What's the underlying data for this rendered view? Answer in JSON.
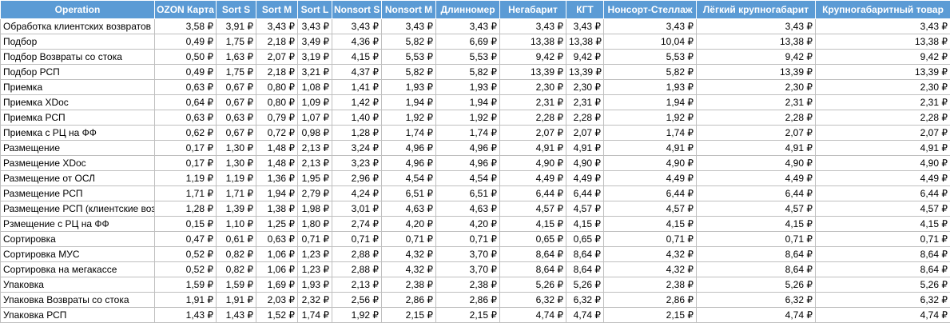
{
  "table": {
    "columns": [
      "Operation",
      "OZON Карта",
      "Sort S",
      "Sort M",
      "Sort L",
      "Nonsort S",
      "Nonsort M",
      "Длинномер",
      "Негабарит",
      "КГТ",
      "Нонсорт-Стеллаж",
      "Лёгкий крупногабарит",
      "Крупногабаритный товар"
    ],
    "rows": [
      [
        "Обработка клиентских возвратов",
        "3,58 ₽",
        "3,91 ₽",
        "3,43 ₽",
        "3,43 ₽",
        "3,43 ₽",
        "3,43 ₽",
        "3,43 ₽",
        "3,43 ₽",
        "3,43 ₽",
        "3,43 ₽",
        "3,43 ₽",
        "3,43 ₽"
      ],
      [
        "Подбор",
        "0,49 ₽",
        "1,75 ₽",
        "2,18 ₽",
        "3,49 ₽",
        "4,36 ₽",
        "5,82 ₽",
        "6,69 ₽",
        "13,38 ₽",
        "13,38 ₽",
        "10,04 ₽",
        "13,38 ₽",
        "13,38 ₽"
      ],
      [
        "Подбор Возвраты со стока",
        "0,50 ₽",
        "1,63 ₽",
        "2,07 ₽",
        "3,19 ₽",
        "4,15 ₽",
        "5,53 ₽",
        "5,53 ₽",
        "9,42 ₽",
        "9,42 ₽",
        "5,53 ₽",
        "9,42 ₽",
        "9,42 ₽"
      ],
      [
        "Подбор РСП",
        "0,49 ₽",
        "1,75 ₽",
        "2,18 ₽",
        "3,21 ₽",
        "4,37 ₽",
        "5,82 ₽",
        "5,82 ₽",
        "13,39 ₽",
        "13,39 ₽",
        "5,82 ₽",
        "13,39 ₽",
        "13,39 ₽"
      ],
      [
        "Приемка",
        "0,63 ₽",
        "0,67 ₽",
        "0,80 ₽",
        "1,08 ₽",
        "1,41 ₽",
        "1,93 ₽",
        "1,93 ₽",
        "2,30 ₽",
        "2,30 ₽",
        "1,93 ₽",
        "2,30 ₽",
        "2,30 ₽"
      ],
      [
        "Приемка XDoc",
        "0,64 ₽",
        "0,67 ₽",
        "0,80 ₽",
        "1,09 ₽",
        "1,42 ₽",
        "1,94 ₽",
        "1,94 ₽",
        "2,31 ₽",
        "2,31 ₽",
        "1,94 ₽",
        "2,31 ₽",
        "2,31 ₽"
      ],
      [
        "Приемка РСП",
        "0,63 ₽",
        "0,63 ₽",
        "0,79 ₽",
        "1,07 ₽",
        "1,40 ₽",
        "1,92 ₽",
        "1,92 ₽",
        "2,28 ₽",
        "2,28 ₽",
        "1,92 ₽",
        "2,28 ₽",
        "2,28 ₽"
      ],
      [
        "Приемка с РЦ на ФФ",
        "0,62 ₽",
        "0,67 ₽",
        "0,72 ₽",
        "0,98 ₽",
        "1,28 ₽",
        "1,74 ₽",
        "1,74 ₽",
        "2,07 ₽",
        "2,07 ₽",
        "1,74 ₽",
        "2,07 ₽",
        "2,07 ₽"
      ],
      [
        "Размещение",
        "0,17 ₽",
        "1,30 ₽",
        "1,48 ₽",
        "2,13 ₽",
        "3,24 ₽",
        "4,96 ₽",
        "4,96 ₽",
        "4,91 ₽",
        "4,91 ₽",
        "4,91 ₽",
        "4,91 ₽",
        "4,91 ₽"
      ],
      [
        "Размещение XDoc",
        "0,17 ₽",
        "1,30 ₽",
        "1,48 ₽",
        "2,13 ₽",
        "3,23 ₽",
        "4,96 ₽",
        "4,96 ₽",
        "4,90 ₽",
        "4,90 ₽",
        "4,90 ₽",
        "4,90 ₽",
        "4,90 ₽"
      ],
      [
        "Размещение от ОСЛ",
        "1,19 ₽",
        "1,19 ₽",
        "1,36 ₽",
        "1,95 ₽",
        "2,96 ₽",
        "4,54 ₽",
        "4,54 ₽",
        "4,49 ₽",
        "4,49 ₽",
        "4,49 ₽",
        "4,49 ₽",
        "4,49 ₽"
      ],
      [
        "Размещение РСП",
        "1,71 ₽",
        "1,71 ₽",
        "1,94 ₽",
        "2,79 ₽",
        "4,24 ₽",
        "6,51 ₽",
        "6,51 ₽",
        "6,44 ₽",
        "6,44 ₽",
        "6,44 ₽",
        "6,44 ₽",
        "6,44 ₽"
      ],
      [
        "Размещение РСП (клиентские возвраты)",
        "1,28 ₽",
        "1,39 ₽",
        "1,38 ₽",
        "1,98 ₽",
        "3,01 ₽",
        "4,63 ₽",
        "4,63 ₽",
        "4,57 ₽",
        "4,57 ₽",
        "4,57 ₽",
        "4,57 ₽",
        "4,57 ₽"
      ],
      [
        "Рзмещение с РЦ на ФФ",
        "0,15 ₽",
        "1,10 ₽",
        "1,25 ₽",
        "1,80 ₽",
        "2,74 ₽",
        "4,20 ₽",
        "4,20 ₽",
        "4,15 ₽",
        "4,15 ₽",
        "4,15 ₽",
        "4,15 ₽",
        "4,15 ₽"
      ],
      [
        "Сортировка",
        "0,47 ₽",
        "0,61 ₽",
        "0,63 ₽",
        "0,71 ₽",
        "0,71 ₽",
        "0,71 ₽",
        "0,71 ₽",
        "0,65 ₽",
        "0,65 ₽",
        "0,71 ₽",
        "0,71 ₽",
        "0,71 ₽"
      ],
      [
        "Сортировка МУС",
        "0,52 ₽",
        "0,82 ₽",
        "1,06 ₽",
        "1,23 ₽",
        "2,88 ₽",
        "4,32 ₽",
        "3,70 ₽",
        "8,64 ₽",
        "8,64 ₽",
        "4,32 ₽",
        "8,64 ₽",
        "8,64 ₽"
      ],
      [
        "Сортировка на мегакассе",
        "0,52 ₽",
        "0,82 ₽",
        "1,06 ₽",
        "1,23 ₽",
        "2,88 ₽",
        "4,32 ₽",
        "3,70 ₽",
        "8,64 ₽",
        "8,64 ₽",
        "4,32 ₽",
        "8,64 ₽",
        "8,64 ₽"
      ],
      [
        "Упаковка",
        "1,59 ₽",
        "1,59 ₽",
        "1,69 ₽",
        "1,93 ₽",
        "2,13 ₽",
        "2,38 ₽",
        "2,38 ₽",
        "5,26 ₽",
        "5,26 ₽",
        "2,38 ₽",
        "5,26 ₽",
        "5,26 ₽"
      ],
      [
        "Упаковка Возвраты со стока",
        "1,91 ₽",
        "1,91 ₽",
        "2,03 ₽",
        "2,32 ₽",
        "2,56 ₽",
        "2,86 ₽",
        "2,86 ₽",
        "6,32 ₽",
        "6,32 ₽",
        "2,86 ₽",
        "6,32 ₽",
        "6,32 ₽"
      ],
      [
        "Упаковка РСП",
        "1,43 ₽",
        "1,43 ₽",
        "1,52 ₽",
        "1,74 ₽",
        "1,92 ₽",
        "2,15 ₽",
        "2,15 ₽",
        "4,74 ₽",
        "4,74 ₽",
        "2,15 ₽",
        "4,74 ₽",
        "4,74 ₽"
      ]
    ]
  }
}
